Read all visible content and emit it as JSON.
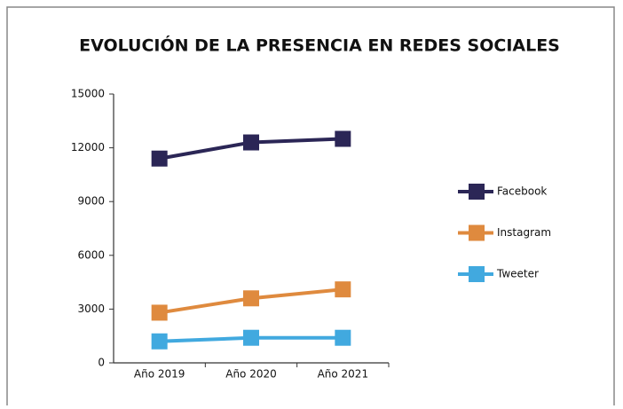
{
  "chart_data": {
    "type": "line",
    "title": "EVOLUCIÓN DE LA PRESENCIA EN REDES SOCIALES",
    "categories": [
      "Año 2019",
      "Año 2020",
      "Año 2021"
    ],
    "series": [
      {
        "name": "Facebook",
        "color": "#2b2656",
        "values": [
          11400,
          12300,
          12500
        ]
      },
      {
        "name": "Instagram",
        "color": "#df8a3e",
        "values": [
          2800,
          3600,
          4100
        ]
      },
      {
        "name": "Tweeter",
        "color": "#41a9df",
        "values": [
          1200,
          1400,
          1400
        ]
      }
    ],
    "ylim": [
      0,
      15000
    ],
    "yticks": [
      0,
      3000,
      6000,
      9000,
      12000,
      15000
    ],
    "legend": "right"
  }
}
